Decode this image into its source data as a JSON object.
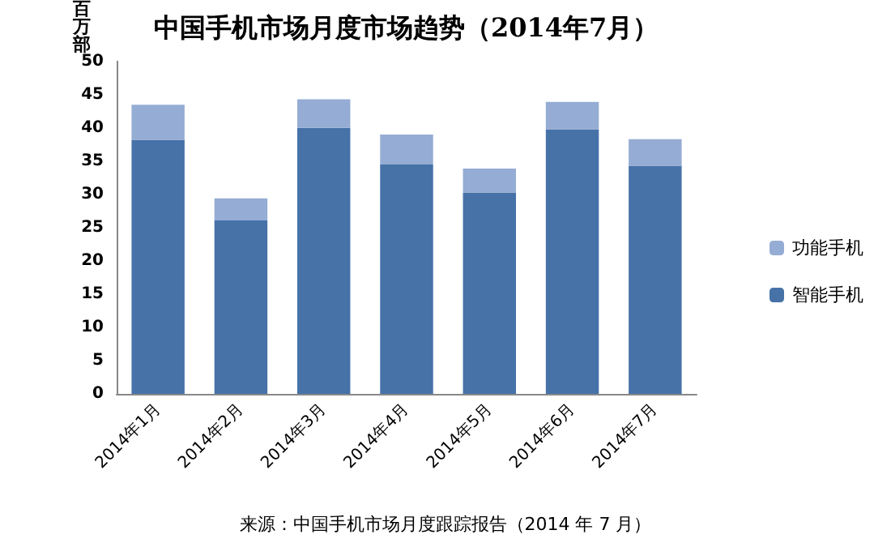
{
  "chart_data": {
    "type": "bar",
    "title": "中国手机市场月度市场趋势（2014年7月）",
    "ylabel": "百万部",
    "annotations": [
      "来源：中国手机市场月度跟踪报告（2014 年 7 月）"
    ],
    "categories": [
      "2014年1月",
      "2014年2月",
      "2014年3月",
      "2014年4月",
      "2014年5月",
      "2014年6月",
      "2014年7月"
    ],
    "stacked": true,
    "series": [
      {
        "name": "智能手机",
        "color": "#4672a8",
        "values": [
          38.2,
          26.1,
          40.0,
          34.5,
          30.3,
          39.8,
          34.3
        ]
      },
      {
        "name": "功能手机",
        "color": "#95acd4",
        "values": [
          5.3,
          3.3,
          4.3,
          4.5,
          3.6,
          4.1,
          4.0
        ]
      }
    ],
    "ylim": [
      0,
      50
    ],
    "yticks": [
      0,
      5,
      10,
      15,
      20,
      25,
      30,
      35,
      40,
      45,
      50
    ],
    "grid": false,
    "legend": "right"
  }
}
